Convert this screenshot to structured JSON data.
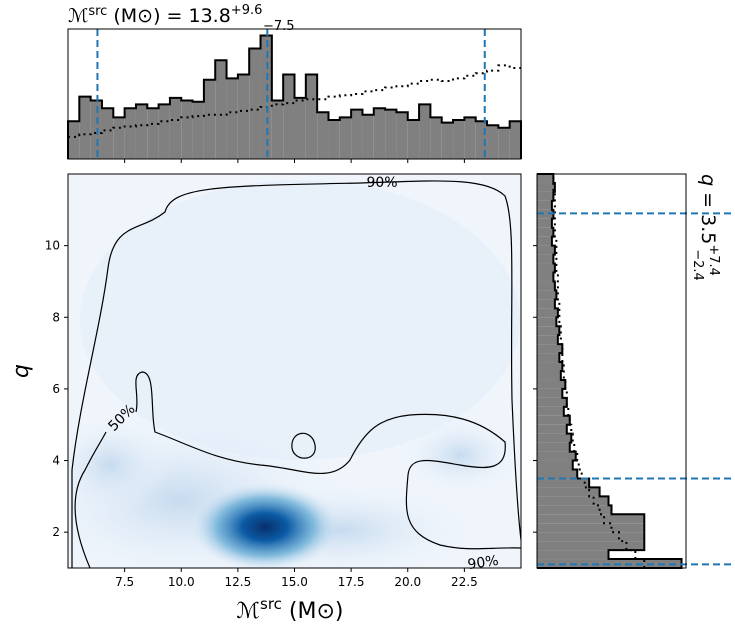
{
  "chart_data": [
    {
      "type": "histogram",
      "orientation": "vertical",
      "title": {
        "symbol": "ℳ",
        "sup": "src",
        "rest": " (M⊙) = 13.8",
        "upper": "+9.6",
        "lower": "−7.5"
      },
      "bins": [
        5,
        5.5,
        6,
        6.5,
        7,
        7.5,
        8,
        8.5,
        9,
        9.5,
        10,
        10.5,
        11,
        11.5,
        12,
        12.5,
        13,
        13.5,
        14,
        14.5,
        15,
        15.5,
        16,
        16.5,
        17,
        17.5,
        18,
        18.5,
        19,
        19.5,
        20,
        20.5,
        21,
        21.5,
        22,
        22.5,
        23,
        23.5,
        24,
        24.5,
        25
      ],
      "series": [
        {
          "color": "#808080",
          "style": "filled",
          "values": [
            0.29,
            0.48,
            0.45,
            0.39,
            0.32,
            0.39,
            0.42,
            0.39,
            0.42,
            0.47,
            0.45,
            0.44,
            0.61,
            0.76,
            0.62,
            0.65,
            0.85,
            0.95,
            0.45,
            0.65,
            0.47,
            0.65,
            0.36,
            0.3,
            0.32,
            0.38,
            0.34,
            0.39,
            0.38,
            0.36,
            0.3,
            0.42,
            0.32,
            0.28,
            0.3,
            0.32,
            0.29,
            0.26,
            0.24,
            0.29
          ]
        },
        {
          "color": "#000000",
          "style": "dotted",
          "values": [
            0.17,
            0.19,
            0.2,
            0.22,
            0.24,
            0.25,
            0.26,
            0.27,
            0.29,
            0.3,
            0.32,
            0.33,
            0.34,
            0.34,
            0.36,
            0.37,
            0.38,
            0.4,
            0.42,
            0.43,
            0.45,
            0.46,
            0.46,
            0.48,
            0.49,
            0.5,
            0.52,
            0.53,
            0.55,
            0.56,
            0.58,
            0.6,
            0.61,
            0.6,
            0.62,
            0.64,
            0.66,
            0.68,
            0.72,
            0.7
          ]
        }
      ],
      "xlim": [
        5,
        25
      ],
      "ylim": [
        0,
        1
      ],
      "xticks": [
        7.5,
        {
          "value": 10,
          "label": "10.0"
        },
        12.5,
        {
          "value": 15,
          "label": "15.0"
        },
        17.5,
        {
          "value": 20,
          "label": "20.0"
        },
        22.5
      ],
      "quantiles": [
        6.3,
        13.8,
        23.4
      ],
      "quantile_color": "#1f77b4"
    },
    {
      "type": "density",
      "x_label": {
        "symbol": "ℳ",
        "sup": "src",
        "rest": " (M⊙)"
      },
      "y_label": "q",
      "contour_labels": [
        "90%",
        "50%",
        "90%"
      ],
      "xlim": [
        5,
        25
      ],
      "ylim": [
        1,
        12
      ],
      "xticks": [
        7.5,
        {
          "value": 10,
          "label": "10.0"
        },
        12.5,
        {
          "value": 15,
          "label": "15.0"
        },
        17.5,
        {
          "value": 20,
          "label": "20.0"
        },
        22.5
      ],
      "yticks": [
        2,
        4,
        6,
        8,
        10
      ]
    },
    {
      "type": "histogram",
      "orientation": "horizontal",
      "label": {
        "symbol": "q",
        "rest": " = 3.5",
        "upper": "+7.4",
        "lower": "−2.4"
      },
      "bins": [
        1,
        1.25,
        1.5,
        1.75,
        2,
        2.25,
        2.5,
        2.75,
        3,
        3.25,
        3.5,
        3.75,
        4,
        4.25,
        4.5,
        4.75,
        5,
        5.25,
        5.5,
        5.75,
        6,
        6.25,
        6.5,
        6.75,
        7,
        7.25,
        7.5,
        7.75,
        8,
        8.25,
        8.5,
        8.75,
        9,
        9.25,
        9.5,
        9.75,
        10,
        10.25,
        10.5,
        10.75,
        11,
        11.25,
        11.5,
        11.75,
        12
      ],
      "series": [
        {
          "color": "#808080",
          "style": "filled",
          "values": [
            0.97,
            0.48,
            0.72,
            0.72,
            0.72,
            0.72,
            0.5,
            0.48,
            0.42,
            0.35,
            0.27,
            0.24,
            0.26,
            0.22,
            0.23,
            0.2,
            0.22,
            0.18,
            0.2,
            0.17,
            0.19,
            0.16,
            0.17,
            0.15,
            0.17,
            0.14,
            0.15,
            0.13,
            0.14,
            0.12,
            0.13,
            0.12,
            0.11,
            0.12,
            0.11,
            0.12,
            0.1,
            0.11,
            0.1,
            0.11,
            0.1,
            0.11,
            0.12,
            0.11
          ]
        },
        {
          "color": "#000000",
          "style": "dotted",
          "values": [
            0.72,
            0.66,
            0.6,
            0.55,
            0.5,
            0.45,
            0.42,
            0.38,
            0.35,
            0.32,
            0.3,
            0.28,
            0.27,
            0.25,
            0.24,
            0.23,
            0.22,
            0.21,
            0.2,
            0.2,
            0.19,
            0.18,
            0.18,
            0.17,
            0.17,
            0.16,
            0.16,
            0.15,
            0.15,
            0.15,
            0.14,
            0.14,
            0.14,
            0.13,
            0.13,
            0.13,
            0.13,
            0.12,
            0.12,
            0.12,
            0.12,
            0.12,
            0.11,
            0.11
          ]
        }
      ],
      "xlim": [
        0,
        1
      ],
      "ylim": [
        1,
        12
      ],
      "yticks": [
        2,
        4,
        6,
        8,
        10
      ],
      "quantiles": [
        1.1,
        3.5,
        10.9
      ],
      "quantile_color": "#1f77b4"
    }
  ]
}
